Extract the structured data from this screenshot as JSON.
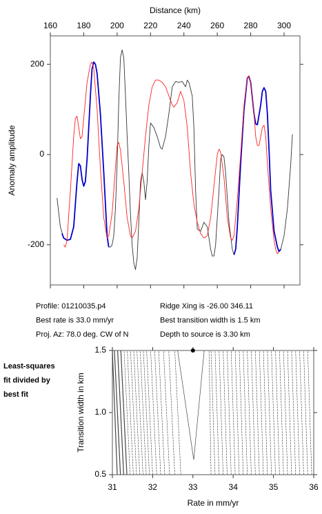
{
  "chart_data": [
    {
      "type": "line",
      "xlabel": "Distance (km)",
      "ylabel": "Anomaly amplitude",
      "xlim": [
        160,
        309.5
      ],
      "xticks": [
        160,
        180,
        200,
        220,
        240,
        260,
        280,
        300
      ],
      "ylim": [
        -289,
        263
      ],
      "yticks": [
        -200,
        0,
        200
      ],
      "series": [
        {
          "name": "observed",
          "color": "#333333",
          "x": [
            164,
            166,
            168,
            170,
            172,
            174,
            176,
            177,
            178,
            179,
            180,
            181,
            182,
            183,
            184,
            185,
            186,
            187,
            188,
            190,
            192,
            194,
            195,
            196,
            197,
            198,
            199,
            200,
            201,
            202,
            203,
            204,
            205,
            206,
            207,
            208,
            209,
            210,
            211,
            212,
            213,
            214,
            215,
            216,
            217,
            218,
            219,
            220,
            222,
            224,
            226,
            227,
            229,
            231,
            233,
            235,
            237,
            239,
            241,
            242,
            243,
            245,
            246,
            247,
            248,
            250,
            252,
            254,
            256,
            257,
            258,
            259,
            261,
            262,
            263,
            264,
            265,
            267,
            269,
            270,
            271,
            272,
            274,
            276,
            278,
            279,
            280,
            282,
            283,
            284,
            286,
            287,
            288,
            289,
            290,
            291,
            292,
            294,
            296,
            297,
            298,
            300,
            302,
            304,
            305
          ],
          "values": [
            -96,
            -160,
            -185,
            -190,
            -188,
            -160,
            -60,
            -20,
            -25,
            -55,
            -70,
            -60,
            -10,
            60,
            130,
            190,
            205,
            200,
            180,
            90,
            -40,
            -180,
            -205,
            -205,
            -200,
            -180,
            -120,
            -20,
            120,
            215,
            232,
            215,
            130,
            40,
            -40,
            -130,
            -200,
            -240,
            -255,
            -230,
            -150,
            -60,
            -40,
            -60,
            -100,
            -60,
            20,
            70,
            60,
            40,
            15,
            12,
            40,
            90,
            150,
            162,
            160,
            162,
            150,
            165,
            160,
            130,
            60,
            -80,
            -165,
            -170,
            -150,
            -160,
            -210,
            -225,
            -225,
            -200,
            -80,
            -10,
            0,
            -5,
            -40,
            -150,
            -210,
            -222,
            -210,
            -160,
            -20,
            100,
            170,
            173,
            160,
            90,
            68,
            66,
            110,
            140,
            148,
            140,
            90,
            10,
            -80,
            -170,
            -205,
            -215,
            -210,
            -180,
            -120,
            -20,
            45
          ]
        },
        {
          "name": "selected",
          "color": "#0000cc",
          "x": [
            167,
            168,
            170,
            172,
            174,
            176,
            177,
            178,
            179,
            180,
            181,
            182,
            183,
            184,
            185,
            186,
            187,
            188,
            190,
            192,
            194,
            195,
            230,
            270,
            271,
            272,
            274,
            276,
            278,
            279,
            280,
            282,
            283,
            284,
            286,
            287,
            288,
            289,
            290,
            291,
            292,
            294,
            296,
            297,
            298
          ],
          "values": [
            -175,
            -185,
            -190,
            -188,
            -160,
            -60,
            -20,
            -25,
            -55,
            -70,
            -60,
            -10,
            60,
            130,
            190,
            205,
            200,
            180,
            90,
            -40,
            -180,
            -205,
            null,
            -222,
            -210,
            -160,
            -20,
            100,
            170,
            173,
            160,
            90,
            68,
            66,
            110,
            140,
            148,
            140,
            90,
            10,
            -80,
            -170,
            -205,
            -215,
            -210
          ]
        },
        {
          "name": "model",
          "color": "#ff2020",
          "x": [
            168,
            169,
            170,
            172,
            174,
            175,
            176,
            177,
            178,
            179,
            180,
            182,
            184,
            185,
            186,
            188,
            190,
            192,
            194,
            195,
            197,
            199,
            200,
            201,
            202,
            204,
            206,
            208,
            209,
            211,
            213,
            215,
            217,
            219,
            221,
            223,
            225,
            227,
            229,
            231,
            233,
            234,
            236,
            238,
            240,
            242,
            244,
            246,
            248,
            250,
            252,
            254,
            256,
            258,
            260,
            261,
            262,
            264,
            266,
            268,
            269,
            270,
            272,
            274,
            276,
            278,
            279,
            280,
            282,
            283,
            284,
            285,
            286,
            287,
            288,
            289,
            290,
            292,
            294,
            295,
            296,
            297
          ],
          "values": [
            -200,
            -205,
            -190,
            -80,
            40,
            80,
            85,
            60,
            35,
            40,
            80,
            160,
            200,
            205,
            190,
            100,
            -30,
            -140,
            -185,
            -180,
            -130,
            -30,
            20,
            27,
            10,
            -60,
            -140,
            -180,
            -185,
            -170,
            -120,
            -40,
            40,
            110,
            150,
            165,
            165,
            160,
            150,
            130,
            110,
            105,
            115,
            140,
            120,
            60,
            -40,
            -110,
            -150,
            -175,
            -185,
            -180,
            -140,
            -70,
            0,
            12,
            5,
            -50,
            -140,
            -185,
            -190,
            -180,
            -100,
            0,
            110,
            170,
            175,
            160,
            90,
            40,
            20,
            20,
            40,
            60,
            65,
            40,
            -20,
            -120,
            -190,
            -210,
            -220,
            -215
          ]
        }
      ],
      "notes": [
        "Profile: 01210035.p4",
        "Best rate is 33.0 mm/yr",
        "Proj. Az: 78.0 deg. CW of N",
        "Ridge Xing is -26.00 346.11",
        "Best transition width is 1.5 km",
        "Depth to source is   3.30 km"
      ]
    },
    {
      "type": "contour",
      "xlabel": "Rate in mm/yr",
      "ylabel": "Transition width in km",
      "xlim": [
        31,
        36
      ],
      "xticks": [
        31,
        32,
        33,
        34,
        35,
        36
      ],
      "ylim": [
        0.5,
        1.5
      ],
      "yticks": [
        0.5,
        {
          "value": 1,
          "label": "1.0"
        },
        1.5
      ],
      "note": [
        "Least-squares",
        "fit divided by",
        "best fit"
      ],
      "contour_y": [
        0.5,
        1.5
      ],
      "contours": [
        [
          31.12,
          31.0
        ],
        [
          31.2,
          31.05
        ],
        [
          31.28,
          31.13
        ],
        [
          31.36,
          31.21
        ],
        [
          31.44,
          31.29
        ],
        [
          31.52,
          31.37
        ],
        [
          31.6,
          31.45
        ],
        [
          31.68,
          31.53
        ],
        [
          31.76,
          31.61
        ],
        [
          31.84,
          31.69
        ],
        [
          31.92,
          31.77
        ],
        [
          32.0,
          31.85
        ],
        [
          32.1,
          31.95
        ],
        [
          32.2,
          32.05
        ],
        [
          32.3,
          32.15
        ],
        [
          32.42,
          32.27
        ],
        [
          32.55,
          32.4
        ],
        [
          32.7,
          32.55
        ],
        [
          33.45,
          33.4
        ],
        [
          33.55,
          33.45
        ],
        [
          33.65,
          33.55
        ],
        [
          33.75,
          33.65
        ],
        [
          33.85,
          33.75
        ],
        [
          33.95,
          33.85
        ],
        [
          34.05,
          33.95
        ],
        [
          34.15,
          34.05
        ],
        [
          34.25,
          34.15
        ],
        [
          34.35,
          34.25
        ],
        [
          34.45,
          34.35
        ],
        [
          34.55,
          34.45
        ],
        [
          34.65,
          34.55
        ],
        [
          34.75,
          34.65
        ],
        [
          34.85,
          34.75
        ],
        [
          34.95,
          34.85
        ],
        [
          35.05,
          34.95
        ],
        [
          35.15,
          35.05
        ],
        [
          35.25,
          35.15
        ],
        [
          35.35,
          35.25
        ],
        [
          35.45,
          35.35
        ],
        [
          35.55,
          35.45
        ],
        [
          35.65,
          35.55
        ],
        [
          35.75,
          35.65
        ],
        [
          35.85,
          35.75
        ],
        [
          35.95,
          35.85
        ]
      ],
      "min_contour": {
        "x": [
          32.62,
          33.02,
          33.28
        ],
        "y": [
          1.5,
          0.62,
          1.5
        ]
      },
      "best_fit": {
        "x": 33.0,
        "y": 1.5
      }
    }
  ]
}
